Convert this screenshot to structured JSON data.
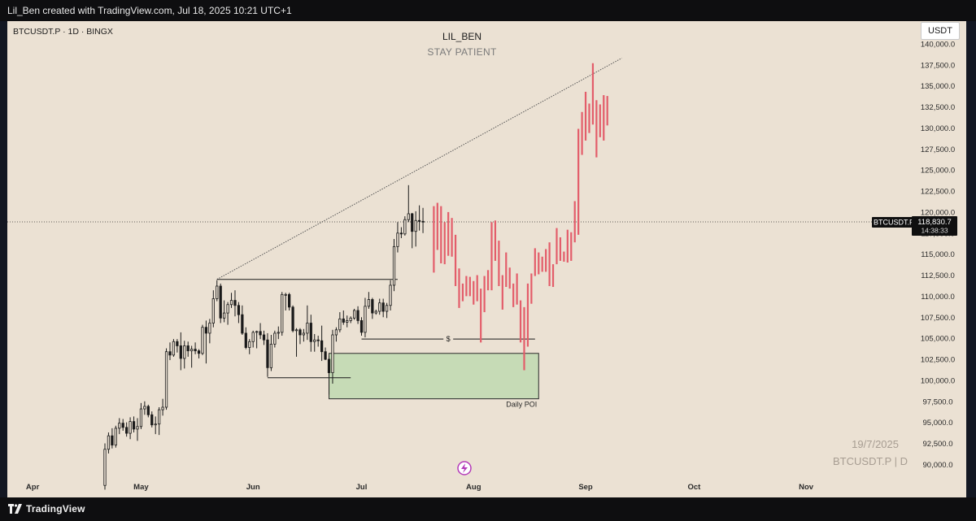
{
  "header": {
    "caption": "Lil_Ben created with TradingView.com, Jul 18, 2025 10:21 UTC+1"
  },
  "chart_header": {
    "symbol_line": "BTCUSDT.P · 1D · BINGX",
    "title": "LIL_BEN",
    "subtitle": "STAY PATIENT",
    "currency_button": "USDT"
  },
  "watermark": {
    "date": "19/7/2025",
    "symbol": "BTCUSDT.P | D"
  },
  "footer": {
    "brand": "TradingView"
  },
  "colors": {
    "background": "#ebe1d3",
    "candle": "#1a1a1a",
    "projection": "#e35d6a",
    "poi_fill": "#c6dbb6",
    "poi_border": "#2a2a2a",
    "label_bg": "#0f0f0f"
  },
  "chart_data": {
    "type": "candlestick",
    "title": "LIL_BEN",
    "subtitle": "STAY PATIENT",
    "symbol": "BTCUSDT.P",
    "timeframe": "1D",
    "exchange": "BINGX",
    "y_axis": {
      "side": "right",
      "range": [
        88200,
        142700
      ],
      "ticks": [
        90000,
        92500,
        95000,
        97500,
        100000,
        102500,
        105000,
        107500,
        110000,
        112500,
        115000,
        117500,
        120000,
        122500,
        125000,
        127500,
        130000,
        132500,
        135000,
        137500,
        140000
      ],
      "tick_labels": [
        "90,000.0",
        "92,500.0",
        "95,000.0",
        "97,500.0",
        "100,000.0",
        "102,500.0",
        "105,000.0",
        "107,500.0",
        "110,000.0",
        "112,500.0",
        "115,000.0",
        "117,500.0",
        "120,000.0",
        "122,500.0",
        "125,000.0",
        "127,500.0",
        "130,000.0",
        "132,500.0",
        "135,000.0",
        "137,500.0",
        "140,000.0"
      ]
    },
    "x_axis": {
      "range": [
        "2025-03-25",
        "2025-11-30"
      ],
      "ticks": [
        {
          "label": "Apr",
          "date": "2025-04-01"
        },
        {
          "label": "May",
          "date": "2025-05-01"
        },
        {
          "label": "Jun",
          "date": "2025-06-01"
        },
        {
          "label": "Jul",
          "date": "2025-07-01"
        },
        {
          "label": "Aug",
          "date": "2025-08-01"
        },
        {
          "label": "Sep",
          "date": "2025-09-01"
        },
        {
          "label": "Oct",
          "date": "2025-10-01"
        },
        {
          "label": "Nov",
          "date": "2025-11-01"
        }
      ]
    },
    "current_price": {
      "symbol": "BTCUSDT.P",
      "price": 118830.7,
      "price_label": "118,830.7",
      "countdown": "14:38:33"
    },
    "candles": [
      {
        "date": "2025-04-21",
        "o": 87500,
        "h": 92500,
        "l": 87000,
        "c": 91800
      },
      {
        "date": "2025-04-22",
        "o": 91800,
        "h": 93800,
        "l": 91300,
        "c": 93400
      },
      {
        "date": "2025-04-23",
        "o": 93400,
        "h": 94300,
        "l": 91900,
        "c": 92300
      },
      {
        "date": "2025-04-24",
        "o": 92300,
        "h": 94600,
        "l": 92000,
        "c": 94300
      },
      {
        "date": "2025-04-25",
        "o": 94300,
        "h": 95500,
        "l": 93600,
        "c": 94900
      },
      {
        "date": "2025-04-26",
        "o": 94900,
        "h": 95400,
        "l": 94000,
        "c": 94400
      },
      {
        "date": "2025-04-27",
        "o": 94400,
        "h": 95000,
        "l": 93300,
        "c": 93700
      },
      {
        "date": "2025-04-28",
        "o": 93700,
        "h": 95600,
        "l": 93000,
        "c": 95100
      },
      {
        "date": "2025-04-29",
        "o": 95100,
        "h": 95700,
        "l": 93800,
        "c": 94200
      },
      {
        "date": "2025-04-30",
        "o": 94200,
        "h": 95500,
        "l": 92800,
        "c": 94500
      },
      {
        "date": "2025-05-01",
        "o": 94500,
        "h": 97300,
        "l": 94200,
        "c": 96600
      },
      {
        "date": "2025-05-02",
        "o": 96600,
        "h": 97500,
        "l": 95900,
        "c": 96900
      },
      {
        "date": "2025-05-03",
        "o": 96900,
        "h": 97100,
        "l": 95600,
        "c": 95900
      },
      {
        "date": "2025-05-04",
        "o": 95900,
        "h": 96300,
        "l": 94400,
        "c": 94700
      },
      {
        "date": "2025-05-05",
        "o": 94700,
        "h": 95700,
        "l": 93600,
        "c": 94800
      },
      {
        "date": "2025-05-06",
        "o": 94800,
        "h": 96800,
        "l": 93500,
        "c": 96500
      },
      {
        "date": "2025-05-07",
        "o": 96500,
        "h": 97800,
        "l": 95800,
        "c": 96800
      },
      {
        "date": "2025-05-08",
        "o": 96800,
        "h": 103800,
        "l": 96500,
        "c": 103400
      },
      {
        "date": "2025-05-09",
        "o": 103400,
        "h": 104500,
        "l": 102400,
        "c": 103000
      },
      {
        "date": "2025-05-10",
        "o": 103000,
        "h": 104900,
        "l": 102800,
        "c": 104600
      },
      {
        "date": "2025-05-11",
        "o": 104600,
        "h": 104900,
        "l": 103300,
        "c": 104100
      },
      {
        "date": "2025-05-12",
        "o": 104100,
        "h": 105700,
        "l": 101200,
        "c": 102600
      },
      {
        "date": "2025-05-13",
        "o": 102600,
        "h": 104700,
        "l": 101400,
        "c": 104100
      },
      {
        "date": "2025-05-14",
        "o": 104100,
        "h": 104600,
        "l": 102800,
        "c": 103500
      },
      {
        "date": "2025-05-15",
        "o": 103500,
        "h": 104100,
        "l": 101500,
        "c": 103700
      },
      {
        "date": "2025-05-16",
        "o": 103700,
        "h": 104500,
        "l": 103100,
        "c": 103500
      },
      {
        "date": "2025-05-17",
        "o": 103500,
        "h": 103700,
        "l": 102600,
        "c": 103200
      },
      {
        "date": "2025-05-18",
        "o": 103200,
        "h": 106600,
        "l": 103000,
        "c": 106300
      },
      {
        "date": "2025-05-19",
        "o": 106300,
        "h": 107100,
        "l": 102000,
        "c": 105600
      },
      {
        "date": "2025-05-20",
        "o": 105600,
        "h": 107300,
        "l": 104400,
        "c": 106800
      },
      {
        "date": "2025-05-21",
        "o": 106800,
        "h": 110700,
        "l": 106300,
        "c": 109700
      },
      {
        "date": "2025-05-22",
        "o": 109700,
        "h": 111900,
        "l": 109400,
        "c": 111200
      },
      {
        "date": "2025-05-23",
        "o": 111200,
        "h": 111500,
        "l": 106800,
        "c": 107400
      },
      {
        "date": "2025-05-24",
        "o": 107400,
        "h": 109500,
        "l": 106900,
        "c": 108000
      },
      {
        "date": "2025-05-25",
        "o": 108000,
        "h": 109300,
        "l": 106600,
        "c": 109000
      },
      {
        "date": "2025-05-26",
        "o": 109000,
        "h": 110400,
        "l": 108600,
        "c": 109500
      },
      {
        "date": "2025-05-27",
        "o": 109500,
        "h": 110700,
        "l": 107600,
        "c": 108900
      },
      {
        "date": "2025-05-28",
        "o": 108900,
        "h": 109300,
        "l": 106800,
        "c": 107800
      },
      {
        "date": "2025-05-29",
        "o": 107800,
        "h": 108900,
        "l": 105400,
        "c": 105600
      },
      {
        "date": "2025-05-30",
        "o": 105600,
        "h": 106300,
        "l": 103700,
        "c": 103900
      },
      {
        "date": "2025-05-31",
        "o": 103900,
        "h": 104900,
        "l": 103100,
        "c": 104600
      },
      {
        "date": "2025-06-01",
        "o": 104600,
        "h": 105900,
        "l": 103900,
        "c": 105700
      },
      {
        "date": "2025-06-02",
        "o": 105700,
        "h": 105900,
        "l": 103800,
        "c": 105800
      },
      {
        "date": "2025-06-03",
        "o": 105800,
        "h": 106800,
        "l": 104900,
        "c": 105400
      },
      {
        "date": "2025-06-04",
        "o": 105400,
        "h": 105900,
        "l": 104200,
        "c": 104800
      },
      {
        "date": "2025-06-05",
        "o": 104800,
        "h": 105600,
        "l": 100400,
        "c": 101500
      },
      {
        "date": "2025-06-06",
        "o": 101500,
        "h": 105400,
        "l": 101100,
        "c": 104300
      },
      {
        "date": "2025-06-07",
        "o": 104300,
        "h": 105900,
        "l": 103900,
        "c": 105600
      },
      {
        "date": "2025-06-08",
        "o": 105600,
        "h": 106400,
        "l": 104900,
        "c": 105700
      },
      {
        "date": "2025-06-09",
        "o": 105700,
        "h": 110500,
        "l": 105300,
        "c": 110200
      },
      {
        "date": "2025-06-10",
        "o": 110200,
        "h": 110400,
        "l": 108300,
        "c": 110200
      },
      {
        "date": "2025-06-11",
        "o": 110200,
        "h": 110400,
        "l": 108300,
        "c": 108700
      },
      {
        "date": "2025-06-12",
        "o": 108700,
        "h": 108900,
        "l": 105700,
        "c": 105900
      },
      {
        "date": "2025-06-13",
        "o": 105900,
        "h": 106200,
        "l": 102800,
        "c": 106000
      },
      {
        "date": "2025-06-14",
        "o": 106000,
        "h": 106200,
        "l": 104300,
        "c": 105400
      },
      {
        "date": "2025-06-15",
        "o": 105400,
        "h": 106100,
        "l": 104600,
        "c": 105600
      },
      {
        "date": "2025-06-16",
        "o": 105600,
        "h": 108900,
        "l": 104800,
        "c": 106800
      },
      {
        "date": "2025-06-17",
        "o": 106800,
        "h": 107800,
        "l": 103400,
        "c": 104600
      },
      {
        "date": "2025-06-18",
        "o": 104600,
        "h": 105500,
        "l": 103400,
        "c": 104800
      },
      {
        "date": "2025-06-19",
        "o": 104800,
        "h": 105300,
        "l": 104000,
        "c": 104700
      },
      {
        "date": "2025-06-20",
        "o": 104700,
        "h": 106500,
        "l": 102300,
        "c": 103400
      },
      {
        "date": "2025-06-21",
        "o": 103400,
        "h": 103900,
        "l": 102400,
        "c": 102500
      },
      {
        "date": "2025-06-22",
        "o": 102500,
        "h": 102900,
        "l": 98300,
        "c": 100900
      },
      {
        "date": "2025-06-23",
        "o": 100900,
        "h": 106000,
        "l": 99600,
        "c": 105400
      },
      {
        "date": "2025-06-24",
        "o": 105400,
        "h": 106300,
        "l": 104600,
        "c": 106000
      },
      {
        "date": "2025-06-25",
        "o": 106000,
        "h": 108100,
        "l": 105700,
        "c": 107300
      },
      {
        "date": "2025-06-26",
        "o": 107300,
        "h": 108300,
        "l": 106600,
        "c": 106900
      },
      {
        "date": "2025-06-27",
        "o": 106900,
        "h": 107700,
        "l": 106300,
        "c": 107100
      },
      {
        "date": "2025-06-28",
        "o": 107100,
        "h": 107600,
        "l": 106800,
        "c": 107400
      },
      {
        "date": "2025-06-29",
        "o": 107400,
        "h": 108500,
        "l": 107200,
        "c": 108300
      },
      {
        "date": "2025-06-30",
        "o": 108300,
        "h": 108800,
        "l": 106700,
        "c": 107100
      },
      {
        "date": "2025-07-01",
        "o": 107100,
        "h": 107500,
        "l": 105300,
        "c": 105700
      },
      {
        "date": "2025-07-02",
        "o": 105700,
        "h": 109800,
        "l": 105100,
        "c": 108800
      },
      {
        "date": "2025-07-03",
        "o": 108800,
        "h": 110500,
        "l": 108500,
        "c": 109600
      },
      {
        "date": "2025-07-04",
        "o": 109600,
        "h": 109800,
        "l": 107300,
        "c": 108000
      },
      {
        "date": "2025-07-05",
        "o": 108000,
        "h": 108400,
        "l": 107800,
        "c": 108200
      },
      {
        "date": "2025-07-06",
        "o": 108200,
        "h": 109700,
        "l": 107800,
        "c": 109200
      },
      {
        "date": "2025-07-07",
        "o": 109200,
        "h": 109700,
        "l": 107500,
        "c": 108200
      },
      {
        "date": "2025-07-08",
        "o": 108200,
        "h": 109200,
        "l": 107400,
        "c": 108900
      },
      {
        "date": "2025-07-09",
        "o": 108900,
        "h": 111900,
        "l": 108300,
        "c": 111300
      },
      {
        "date": "2025-07-10",
        "o": 111300,
        "h": 116800,
        "l": 110600,
        "c": 115900
      },
      {
        "date": "2025-07-11",
        "o": 115900,
        "h": 118800,
        "l": 115200,
        "c": 117500
      },
      {
        "date": "2025-07-12",
        "o": 117500,
        "h": 118200,
        "l": 116900,
        "c": 117400
      },
      {
        "date": "2025-07-13",
        "o": 117400,
        "h": 119500,
        "l": 117200,
        "c": 119100
      },
      {
        "date": "2025-07-14",
        "o": 119100,
        "h": 123200,
        "l": 118800,
        "c": 119800
      },
      {
        "date": "2025-07-15",
        "o": 119800,
        "h": 119900,
        "l": 115700,
        "c": 117700
      },
      {
        "date": "2025-07-16",
        "o": 117700,
        "h": 120100,
        "l": 115900,
        "c": 119000
      },
      {
        "date": "2025-07-17",
        "o": 119000,
        "h": 120800,
        "l": 117800,
        "c": 118900
      },
      {
        "date": "2025-07-18",
        "o": 118900,
        "h": 120500,
        "l": 117500,
        "c": 118830.7
      }
    ],
    "projection": [
      {
        "date": "2025-07-21",
        "h": 120700,
        "l": 112800
      },
      {
        "date": "2025-07-22",
        "h": 121100,
        "l": 115500
      },
      {
        "date": "2025-07-23",
        "h": 120700,
        "l": 113900
      },
      {
        "date": "2025-07-24",
        "h": 118800,
        "l": 113800
      },
      {
        "date": "2025-07-25",
        "h": 120000,
        "l": 114800
      },
      {
        "date": "2025-07-26",
        "h": 119300,
        "l": 114700
      },
      {
        "date": "2025-07-27",
        "h": 117300,
        "l": 111200
      },
      {
        "date": "2025-07-28",
        "h": 113300,
        "l": 108600
      },
      {
        "date": "2025-07-29",
        "h": 111500,
        "l": 109400
      },
      {
        "date": "2025-07-30",
        "h": 112400,
        "l": 110000
      },
      {
        "date": "2025-07-31",
        "h": 112300,
        "l": 110000
      },
      {
        "date": "2025-08-01",
        "h": 111800,
        "l": 109000
      },
      {
        "date": "2025-08-02",
        "h": 112500,
        "l": 109400
      },
      {
        "date": "2025-08-03",
        "h": 110900,
        "l": 104500
      },
      {
        "date": "2025-08-04",
        "h": 112400,
        "l": 108100
      },
      {
        "date": "2025-08-05",
        "h": 113100,
        "l": 110700
      },
      {
        "date": "2025-08-06",
        "h": 118800,
        "l": 110700
      },
      {
        "date": "2025-08-07",
        "h": 119000,
        "l": 114200
      },
      {
        "date": "2025-08-08",
        "h": 116600,
        "l": 111200
      },
      {
        "date": "2025-08-09",
        "h": 112500,
        "l": 108400
      },
      {
        "date": "2025-08-10",
        "h": 115200,
        "l": 111100
      },
      {
        "date": "2025-08-11",
        "h": 113400,
        "l": 110900
      },
      {
        "date": "2025-08-12",
        "h": 111500,
        "l": 108700
      },
      {
        "date": "2025-08-13",
        "h": 112700,
        "l": 109000
      },
      {
        "date": "2025-08-14",
        "h": 109500,
        "l": 104500
      },
      {
        "date": "2025-08-15",
        "h": 108700,
        "l": 101200
      },
      {
        "date": "2025-08-16",
        "h": 111500,
        "l": 104000
      },
      {
        "date": "2025-08-17",
        "h": 112700,
        "l": 109100
      },
      {
        "date": "2025-08-18",
        "h": 115700,
        "l": 112400
      },
      {
        "date": "2025-08-19",
        "h": 115200,
        "l": 112600
      },
      {
        "date": "2025-08-20",
        "h": 114700,
        "l": 112900
      },
      {
        "date": "2025-08-21",
        "h": 115600,
        "l": 112900
      },
      {
        "date": "2025-08-22",
        "h": 116400,
        "l": 111200
      },
      {
        "date": "2025-08-23",
        "h": 113800,
        "l": 111100
      },
      {
        "date": "2025-08-24",
        "h": 118100,
        "l": 113800
      },
      {
        "date": "2025-08-25",
        "h": 117000,
        "l": 114200
      },
      {
        "date": "2025-08-26",
        "h": 115300,
        "l": 114100
      },
      {
        "date": "2025-08-27",
        "h": 117900,
        "l": 114000
      },
      {
        "date": "2025-08-28",
        "h": 117600,
        "l": 114200
      },
      {
        "date": "2025-08-29",
        "h": 121300,
        "l": 116400
      },
      {
        "date": "2025-08-30",
        "h": 129900,
        "l": 117300
      },
      {
        "date": "2025-08-31",
        "h": 131900,
        "l": 126800
      },
      {
        "date": "2025-09-01",
        "h": 134300,
        "l": 128500
      },
      {
        "date": "2025-09-02",
        "h": 132900,
        "l": 129400
      },
      {
        "date": "2025-09-03",
        "h": 137700,
        "l": 130400
      },
      {
        "date": "2025-09-04",
        "h": 133300,
        "l": 126500
      },
      {
        "date": "2025-09-05",
        "h": 132800,
        "l": 128900
      },
      {
        "date": "2025-09-06",
        "h": 133900,
        "l": 128500
      },
      {
        "date": "2025-09-07",
        "h": 133800,
        "l": 130300
      }
    ],
    "trendline": {
      "start": {
        "date": "2025-05-22",
        "price": 112000
      },
      "end": {
        "date": "2025-09-11",
        "price": 138300
      }
    },
    "range_lines": [
      {
        "start": "2025-05-22",
        "end": "2025-07-11",
        "price": 112000
      },
      {
        "start": "2025-06-05",
        "end": "2025-06-28",
        "price": 100300
      }
    ],
    "liquidity_line": {
      "start": "2025-07-01",
      "end": "2025-08-18",
      "price": 104900,
      "label": "$"
    },
    "zone": {
      "label": "Daily POI",
      "x0": "2025-06-22",
      "x1": "2025-08-19",
      "y0": 97800,
      "y1": 103200
    }
  }
}
